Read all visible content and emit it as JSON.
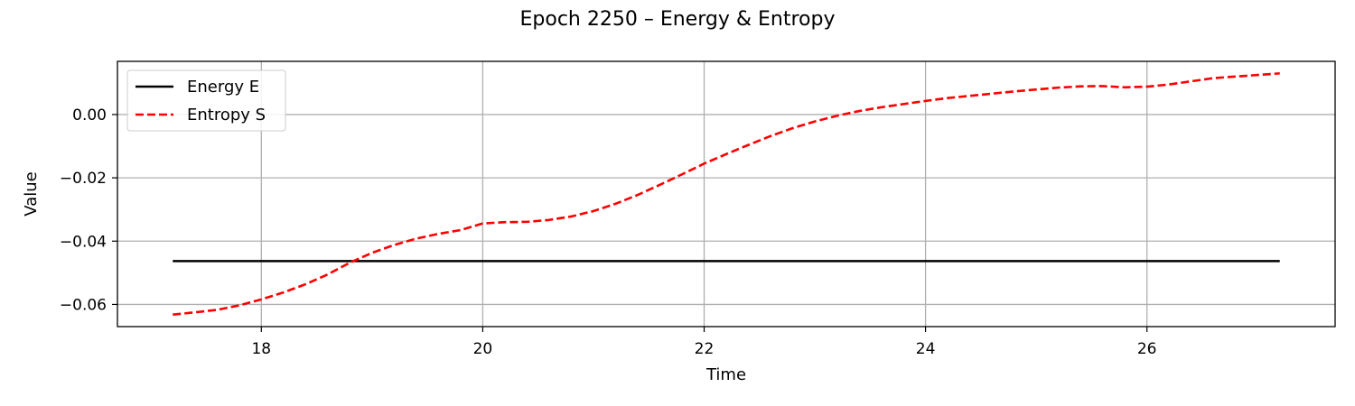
{
  "chart_data": {
    "type": "line",
    "title": "Epoch 2250 – Energy & Entropy",
    "xlabel": "Time",
    "ylabel": "Value",
    "xlim": [
      16.7,
      27.7
    ],
    "ylim": [
      -0.067,
      0.0168
    ],
    "xticks": [
      18,
      20,
      22,
      24,
      26
    ],
    "xtick_labels": [
      "18",
      "20",
      "22",
      "24",
      "26"
    ],
    "yticks": [
      -0.06,
      -0.04,
      -0.02,
      0.0
    ],
    "ytick_labels": [
      "−0.06",
      "−0.04",
      "−0.02",
      "0.00"
    ],
    "grid": true,
    "legend_position": "upper-left",
    "series": [
      {
        "name": "Energy E",
        "color": "#000000",
        "style": "solid",
        "x": [
          17.2,
          27.2
        ],
        "y": [
          -0.0463,
          -0.0463
        ]
      },
      {
        "name": "Entropy S",
        "color": "#ff0000",
        "style": "dashed",
        "x": [
          17.2,
          17.4,
          17.6,
          17.8,
          18.0,
          18.2,
          18.4,
          18.6,
          18.8,
          19.0,
          19.2,
          19.4,
          19.6,
          19.8,
          20.0,
          20.2,
          20.4,
          20.6,
          20.8,
          21.0,
          21.2,
          21.4,
          21.6,
          21.8,
          22.0,
          22.2,
          22.4,
          22.6,
          22.8,
          23.0,
          23.2,
          23.4,
          23.6,
          23.8,
          24.0,
          24.2,
          24.4,
          24.6,
          24.8,
          25.0,
          25.2,
          25.4,
          25.6,
          25.8,
          26.0,
          26.2,
          26.4,
          26.6,
          26.8,
          27.0,
          27.2
        ],
        "y": [
          -0.0632,
          -0.0625,
          -0.0617,
          -0.0603,
          -0.0584,
          -0.0562,
          -0.0536,
          -0.0505,
          -0.0468,
          -0.0437,
          -0.0412,
          -0.0392,
          -0.0377,
          -0.0365,
          -0.0344,
          -0.034,
          -0.0339,
          -0.0333,
          -0.0322,
          -0.0305,
          -0.0282,
          -0.0254,
          -0.0222,
          -0.0189,
          -0.0155,
          -0.0125,
          -0.0096,
          -0.0068,
          -0.0043,
          -0.0022,
          -0.0004,
          0.0011,
          0.0023,
          0.0033,
          0.0043,
          0.0052,
          0.0059,
          0.0066,
          0.0073,
          0.0079,
          0.0085,
          0.0089,
          0.009,
          0.0086,
          0.0088,
          0.0095,
          0.0105,
          0.0115,
          0.012,
          0.0125,
          0.013
        ]
      }
    ]
  }
}
